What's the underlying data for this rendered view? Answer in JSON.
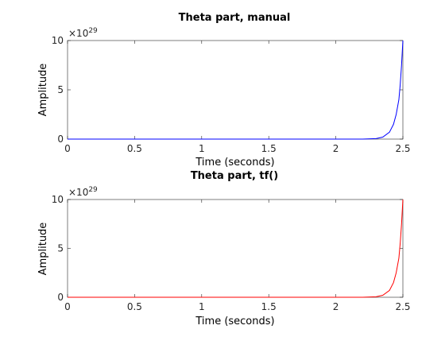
{
  "chart_data": [
    {
      "type": "line",
      "title": "Theta part, manual",
      "xlabel": "Time (seconds)",
      "ylabel": "Amplitude",
      "exponent_label": "×10",
      "exponent_power": "29",
      "xlim": [
        0,
        2.5
      ],
      "ylim": [
        0,
        10
      ],
      "x_ticks": [
        0,
        0.5,
        1,
        1.5,
        2,
        2.5
      ],
      "x_tick_labels": [
        "0",
        "0.5",
        "1",
        "1.5",
        "2",
        "2.5"
      ],
      "y_ticks": [
        0,
        5,
        10
      ],
      "y_tick_labels": [
        "0",
        "5",
        "10"
      ],
      "grid": false,
      "series": [
        {
          "color": "#0000ff",
          "x": [
            0,
            0.5,
            1.0,
            1.5,
            2.0,
            2.2,
            2.3,
            2.35,
            2.4,
            2.43,
            2.45,
            2.47,
            2.48,
            2.49,
            2.5
          ],
          "y": [
            0,
            0,
            0,
            0,
            0,
            0.003,
            0.05,
            0.2,
            0.7,
            1.5,
            2.5,
            4.0,
            5.5,
            7.5,
            10.0
          ]
        }
      ]
    },
    {
      "type": "line",
      "title": "Theta part, tf()",
      "xlabel": "Time (seconds)",
      "ylabel": "Amplitude",
      "exponent_label": "×10",
      "exponent_power": "29",
      "xlim": [
        0,
        2.5
      ],
      "ylim": [
        0,
        10
      ],
      "x_ticks": [
        0,
        0.5,
        1,
        1.5,
        2,
        2.5
      ],
      "x_tick_labels": [
        "0",
        "0.5",
        "1",
        "1.5",
        "2",
        "2.5"
      ],
      "y_ticks": [
        0,
        5,
        10
      ],
      "y_tick_labels": [
        "0",
        "5",
        "10"
      ],
      "grid": false,
      "series": [
        {
          "color": "#ff0000",
          "x": [
            0,
            0.5,
            1.0,
            1.5,
            2.0,
            2.2,
            2.3,
            2.35,
            2.4,
            2.43,
            2.45,
            2.47,
            2.48,
            2.49,
            2.5
          ],
          "y": [
            0,
            0,
            0,
            0,
            0,
            0.003,
            0.05,
            0.2,
            0.7,
            1.5,
            2.5,
            4.0,
            5.5,
            7.5,
            10.0
          ]
        }
      ]
    }
  ]
}
